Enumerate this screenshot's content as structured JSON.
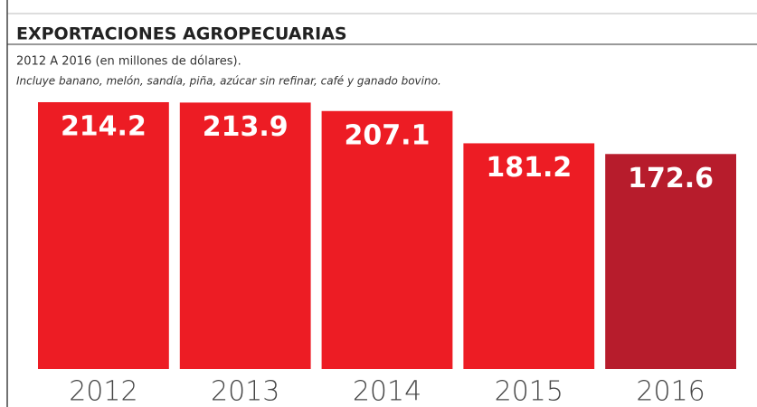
{
  "chart_data": {
    "type": "bar",
    "title": "EXPORTACIONES AGROPECUARIAS",
    "subtitle": "2012 A 2016 (en millones de dólares).",
    "note": "Incluye banano, melón, sandía, piña, azúcar sin refinar, café y ganado bovino.",
    "categories": [
      "2012",
      "2013",
      "2014",
      "2015",
      "2016"
    ],
    "values": [
      214.2,
      213.9,
      207.1,
      181.2,
      172.6
    ],
    "colors": [
      "#ed1c24",
      "#ed1c24",
      "#ed1c24",
      "#ed1c24",
      "#b71c2c"
    ],
    "ylim": [
      0,
      220
    ]
  }
}
